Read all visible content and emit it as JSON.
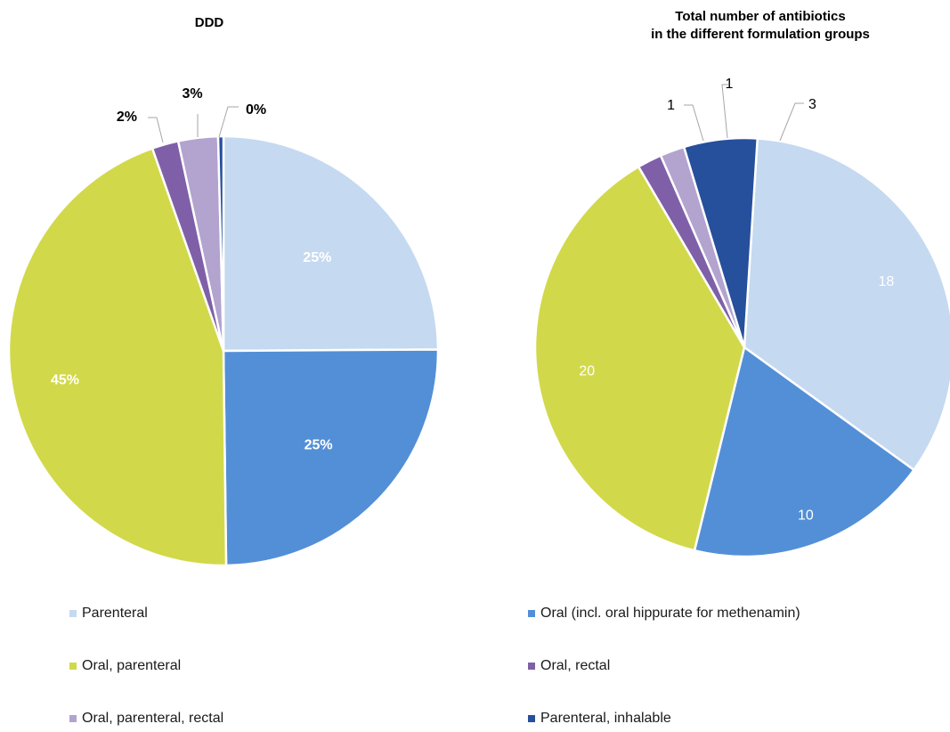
{
  "colors": {
    "Parenteral": "#c5d9f0",
    "Oral (incl. oral hippurate for methenamin)": "#538fd6",
    "Oral, parenteral": "#d1d94a",
    "Oral, rectal": "#7f60a8",
    "Oral, parenteral, rectal": "#b2a3cf",
    "Parenteral, inhalable": "#264f9c"
  },
  "chart_data": [
    {
      "type": "pie",
      "title": "DDD",
      "slices": [
        {
          "label": "Parenteral",
          "value": 25,
          "data_label": "25%"
        },
        {
          "label": "Oral (incl. oral hippurate for methenamin)",
          "value": 25,
          "data_label": "25%"
        },
        {
          "label": "Oral, parenteral",
          "value": 45,
          "data_label": "45%"
        },
        {
          "label": "Oral, rectal",
          "value": 2,
          "data_label": "2%"
        },
        {
          "label": "Oral, parenteral, rectal",
          "value": 3,
          "data_label": "3%"
        },
        {
          "label": "Parenteral, inhalable",
          "value": 0.4,
          "data_label": "0%"
        }
      ]
    },
    {
      "type": "pie",
      "title": "Total number of antibiotics\nin the different formulation groups",
      "slices": [
        {
          "label": "Parenteral",
          "value": 18,
          "data_label": "18"
        },
        {
          "label": "Oral (incl. oral hippurate for methenamin)",
          "value": 10,
          "data_label": "10"
        },
        {
          "label": "Oral, parenteral",
          "value": 20,
          "data_label": "20"
        },
        {
          "label": "Oral, rectal",
          "value": 1,
          "data_label": "1"
        },
        {
          "label": "Oral, parenteral, rectal",
          "value": 1,
          "data_label": "1"
        },
        {
          "label": "Parenteral, inhalable",
          "value": 3,
          "data_label": "3"
        }
      ]
    }
  ],
  "legend": [
    {
      "label": "Parenteral"
    },
    {
      "label": "Oral (incl. oral hippurate for methenamin)"
    },
    {
      "label": "Oral, parenteral"
    },
    {
      "label": "Oral, rectal"
    },
    {
      "label": "Oral, parenteral, rectal"
    },
    {
      "label": "Parenteral, inhalable"
    }
  ]
}
